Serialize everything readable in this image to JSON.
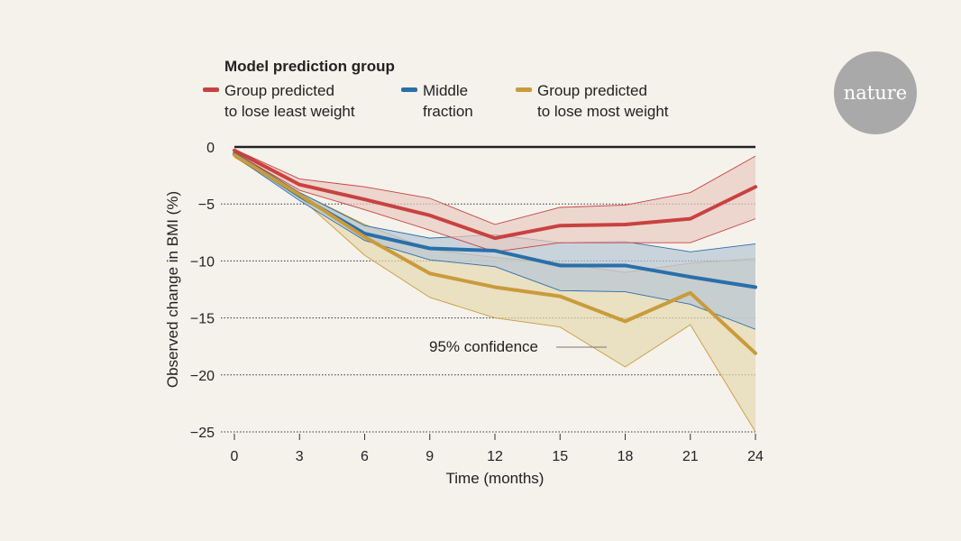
{
  "brand": {
    "logo_text": "nature"
  },
  "chart_data": {
    "type": "line",
    "title": "",
    "legend_title": "Model prediction group",
    "legend_placement": "top",
    "xlabel": "Time (months)",
    "ylabel": "Observed change in BMI (%)",
    "xlim": [
      0,
      24
    ],
    "ylim": [
      -25,
      0
    ],
    "xticks": [
      0,
      3,
      6,
      9,
      12,
      15,
      18,
      21,
      24
    ],
    "yticks": [
      0,
      -5,
      -10,
      -15,
      -20,
      -25
    ],
    "ytick_labels": [
      "0",
      "−5",
      "−10",
      "−15",
      "−20",
      "−25"
    ],
    "grid": "dotted horizontal",
    "annotation": "95% confidence",
    "x": [
      0,
      3,
      6,
      9,
      12,
      15,
      18,
      21,
      24
    ],
    "series": [
      {
        "name": "Group predicted to lose least weight",
        "label_lines": [
          "Group predicted",
          "to lose least weight"
        ],
        "color": "#c8423f",
        "band_color": "#e8cbc2",
        "values": [
          -0.3,
          -3.3,
          -4.6,
          -6.0,
          -8.0,
          -6.9,
          -6.8,
          -6.3,
          -3.5
        ],
        "upper": [
          -0.2,
          -2.8,
          -3.5,
          -4.5,
          -6.8,
          -5.3,
          -5.1,
          -4.0,
          -0.8
        ],
        "lower": [
          -0.5,
          -3.8,
          -5.5,
          -7.3,
          -9.2,
          -8.4,
          -8.4,
          -8.4,
          -6.3
        ]
      },
      {
        "name": "Middle fraction",
        "label_lines": [
          "Middle",
          "fraction"
        ],
        "color": "#2a6fa8",
        "band_color": "#b7c6d6",
        "values": [
          -0.6,
          -4.3,
          -7.6,
          -8.9,
          -9.1,
          -10.4,
          -10.4,
          -11.4,
          -12.3
        ],
        "upper": [
          -0.5,
          -4.0,
          -6.9,
          -8.0,
          -7.7,
          -8.4,
          -8.3,
          -9.2,
          -8.5
        ],
        "lower": [
          -0.8,
          -4.7,
          -8.2,
          -9.9,
          -10.5,
          -12.6,
          -12.7,
          -13.8,
          -16.0
        ]
      },
      {
        "name": "Group predicted to lose most weight",
        "label_lines": [
          "Group predicted",
          "to lose most weight"
        ],
        "color": "#c99b3a",
        "band_color": "#e6d9b0",
        "values": [
          -0.7,
          -4.2,
          -7.9,
          -11.1,
          -12.3,
          -13.1,
          -15.3,
          -12.8,
          -18.1
        ],
        "upper": [
          -0.4,
          -4.0,
          -6.8,
          -9.0,
          -9.7,
          -10.2,
          -11.0,
          -10.2,
          -9.8
        ],
        "lower": [
          -0.9,
          -4.4,
          -9.5,
          -13.2,
          -15.0,
          -15.8,
          -19.3,
          -15.6,
          -25.0
        ]
      }
    ]
  }
}
